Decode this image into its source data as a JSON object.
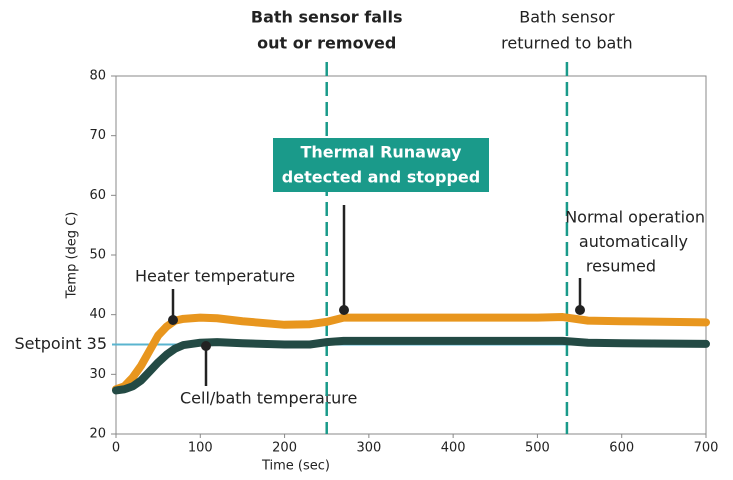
{
  "chart_data": {
    "type": "line",
    "xlabel": "Time (sec)",
    "ylabel": "Temp (deg C)",
    "xlim": [
      0,
      700
    ],
    "ylim": [
      20,
      80
    ],
    "xticks": [
      0,
      100,
      200,
      300,
      400,
      500,
      600,
      700
    ],
    "yticks": [
      20,
      30,
      40,
      50,
      60,
      70,
      80
    ],
    "x": [
      0,
      10,
      20,
      30,
      40,
      50,
      60,
      70,
      80,
      100,
      120,
      150,
      200,
      230,
      250,
      270,
      300,
      400,
      500,
      530,
      560,
      600,
      700
    ],
    "series": [
      {
        "name": "Heater temperature",
        "color": "#e8961e",
        "values": [
          27.5,
          28,
          29.5,
          31.5,
          34,
          36.5,
          38,
          39,
          39.3,
          39.5,
          39.4,
          38.9,
          38.3,
          38.4,
          38.8,
          39.5,
          39.5,
          39.5,
          39.5,
          39.6,
          39,
          38.9,
          38.7
        ]
      },
      {
        "name": "Cell/bath temperature",
        "color": "#234a44",
        "values": [
          27.3,
          27.5,
          28,
          29,
          30.5,
          32,
          33.3,
          34.3,
          34.9,
          35.3,
          35.4,
          35.2,
          35,
          35,
          35.4,
          35.6,
          35.6,
          35.6,
          35.6,
          35.6,
          35.3,
          35.2,
          35.1
        ]
      }
    ],
    "setpoint": 35,
    "setpoint_label": "Setpoint 35",
    "setpoint_color": "#5ab4cf",
    "event_color": "#1a9a8a",
    "events": [
      {
        "x": 250,
        "lines": [
          "Bath sensor falls",
          "out or removed"
        ],
        "bold": true
      },
      {
        "x": 535,
        "lines": [
          "Bath sensor",
          "returned to bath"
        ],
        "bold": false
      }
    ],
    "callout": {
      "lines": [
        "Thermal Runaway",
        "detected and stopped"
      ],
      "color": "#1a9a8a"
    },
    "note": {
      "lines": [
        "Normal operation",
        "automatically",
        "resumed"
      ]
    }
  }
}
